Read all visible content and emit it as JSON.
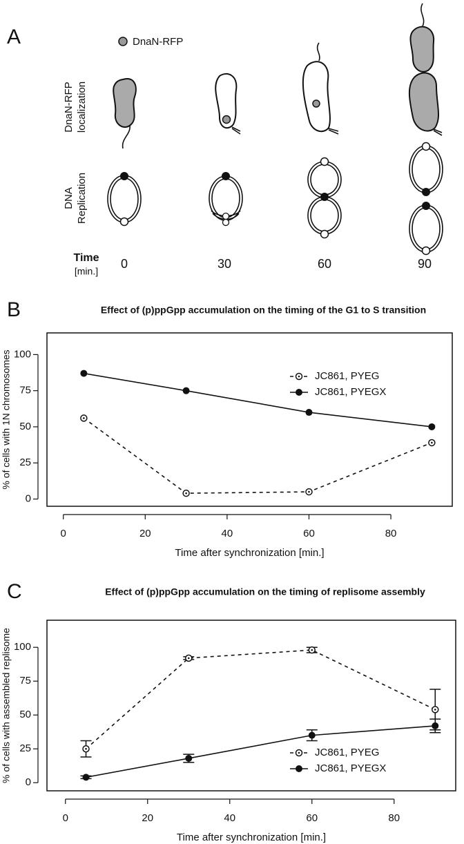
{
  "panel_a": {
    "label": "A",
    "legend": "DnaN-RFP",
    "rows": [
      [
        "DnaN-RFP",
        "localization"
      ],
      [
        "DNA",
        "Replication"
      ]
    ],
    "time_label": "Time",
    "time_unit": "[min.]",
    "times": [
      "0",
      "30",
      "60",
      "90"
    ]
  },
  "chart_data": [
    {
      "panel_label": "B",
      "type": "line",
      "title": "Effect of (p)ppGpp accumulation on the timing of the G1 to S transition",
      "x_label": "Time after synchronization [min.]",
      "y_label": "% of cells with 1N chromosomes",
      "x": [
        5,
        30,
        60,
        90
      ],
      "series": [
        {
          "name": "JC861, PYEG",
          "color": "#111111",
          "line_style": "dashed",
          "marker": "open",
          "values": [
            56,
            4,
            5,
            39
          ]
        },
        {
          "name": "JC861, PYEGX",
          "color": "#111111",
          "line_style": "solid",
          "marker": "filled",
          "values": [
            87,
            75,
            60,
            50
          ]
        }
      ],
      "xlim": [
        -4,
        95
      ],
      "ylim": [
        -5,
        115
      ],
      "xticks": [
        0,
        20,
        40,
        60,
        80
      ],
      "yticks": [
        0,
        25,
        50,
        75,
        100
      ],
      "legend": "right"
    },
    {
      "panel_label": "C",
      "type": "line",
      "title": "Effect of (p)ppGpp accumulation on the timing of replisome assembly",
      "x_label": "Time after synchronization [min.]",
      "y_label": "% of cells with assembled replisome",
      "x": [
        5,
        30,
        60,
        90
      ],
      "series": [
        {
          "name": "JC861, PYEG",
          "color": "#111111",
          "line_style": "dashed",
          "marker": "open",
          "values": [
            25,
            92,
            98,
            54
          ],
          "errors": [
            6,
            1,
            2,
            15
          ]
        },
        {
          "name": "JC861, PYEGX",
          "color": "#111111",
          "line_style": "solid",
          "marker": "filled",
          "values": [
            4,
            18,
            35,
            42
          ],
          "errors": [
            1,
            3,
            4,
            5
          ]
        }
      ],
      "xlim": [
        -4.5,
        95
      ],
      "ylim": [
        -6,
        120
      ],
      "xticks": [
        0,
        20,
        40,
        60,
        80
      ],
      "yticks": [
        0,
        25,
        50,
        75,
        100
      ],
      "legend": "lower right"
    }
  ]
}
